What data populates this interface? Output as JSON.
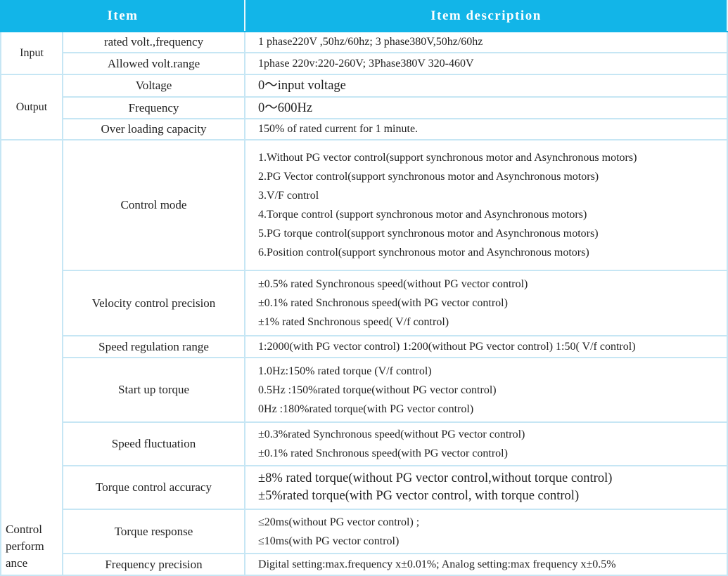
{
  "header": {
    "item": "Item",
    "description": "Item description"
  },
  "colors": {
    "header_bg": "#12b5e8",
    "border": "#c6e6f4"
  },
  "groups": [
    {
      "label": "Input",
      "rows": [
        {
          "item": "rated volt.,frequency",
          "lines": [
            "1 phase220V ,50hz/60hz;     3 phase380V,50hz/60hz"
          ],
          "h": 30
        },
        {
          "item": "Allowed volt.range",
          "lines": [
            "1phase 220v:220-260V;   3Phase380V 320-460V"
          ],
          "h": 31
        }
      ]
    },
    {
      "label": "Output",
      "rows": [
        {
          "item": "Voltage",
          "lines": [
            "0～input voltage"
          ],
          "h": 32,
          "big": true
        },
        {
          "item": "Frequency",
          "lines": [
            "0～600Hz"
          ],
          "h": 31,
          "big": true
        },
        {
          "item": "Over loading capacity",
          "lines": [
            "150% of rated current for 1 minute."
          ],
          "h": 30
        }
      ]
    },
    {
      "label": "Control perform ance",
      "labelLines": [
        "Control",
        "perform",
        "ance"
      ],
      "rows": [
        {
          "item": "Control mode",
          "lines": [
            "1.Without PG vector control(support synchronous motor and Asynchronous motors)",
            "2.PG Vector control(support synchronous motor and Asynchronous motors)",
            "3.V/F control",
            "4.Torque control (support synchronous motor and Asynchronous motors)",
            "5.PG torque control(support synchronous motor and Asynchronous motors)",
            "6.Position control(support synchronous motor and Asynchronous motors)"
          ],
          "h": 186
        },
        {
          "item": "Velocity control precision",
          "lines": [
            "±0.5% rated Synchronous speed(without PG vector control)",
            "±0.1% rated Snchronous speed(with PG vector control)",
            "±1% rated Snchronous speed( V/f control)"
          ],
          "h": 93
        },
        {
          "item": "Speed regulation range",
          "lines": [
            "1:2000(with PG vector control) 1:200(without PG vector control)  1:50( V/f control)"
          ],
          "h": 31
        },
        {
          "item": "Start up torque",
          "lines": [
            "1.0Hz:150% rated torque (V/f control)",
            "0.5Hz :150%rated torque(without PG vector control)",
            "0Hz :180%rated torque(with PG vector control)"
          ],
          "h": 92
        },
        {
          "item": "Speed fluctuation",
          "lines": [
            "±0.3%rated Synchronous speed(without PG vector control)",
            "±0.1% rated Snchronous speed(with PG vector control)"
          ],
          "h": 62
        },
        {
          "item": "Torque control accuracy",
          "lines": [
            "±8% rated torque(without PG vector control,without torque control)",
            "±5%rated torque(with PG vector control, with torque control)"
          ],
          "h": 62,
          "big": true
        },
        {
          "item": "Torque response",
          "lines": [
            "≤20ms(without PG vector control) ;",
            "≤10ms(with PG vector control)"
          ],
          "h": 63
        },
        {
          "item": "Frequency precision",
          "lines": [
            "Digital setting:max.frequency x±0.01%; Analog setting:max frequency x±0.5%"
          ],
          "h": 31
        }
      ]
    }
  ]
}
